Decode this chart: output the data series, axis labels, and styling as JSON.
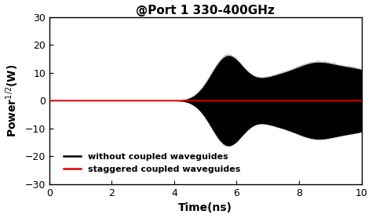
{
  "title": "@Port 1 330-400GHz",
  "xlabel": "Time(ns)",
  "ylabel": "Power$^{1/2}$(W)",
  "xlim": [
    0,
    10
  ],
  "ylim": [
    -30,
    30
  ],
  "xticks": [
    0,
    2,
    4,
    6,
    8,
    10
  ],
  "yticks": [
    -30,
    -20,
    -10,
    0,
    10,
    20,
    30
  ],
  "black_signal_color": "#000000",
  "red_signal_color": "#dd0000",
  "background_color": "#ffffff",
  "legend_labels": [
    "without coupled waveguides",
    "staggered coupled waveguides"
  ],
  "legend_colors": [
    "#000000",
    "#dd0000"
  ],
  "title_fontsize": 11,
  "label_fontsize": 10,
  "tick_fontsize": 9,
  "legend_fontsize": 8
}
